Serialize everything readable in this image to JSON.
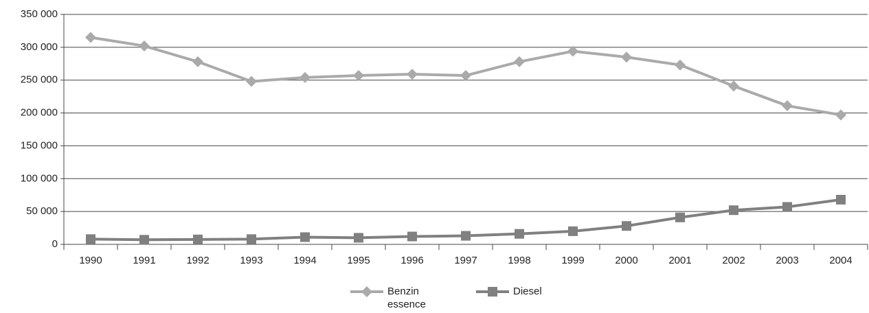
{
  "chart_data": {
    "type": "line",
    "categories": [
      "1990",
      "1991",
      "1992",
      "1993",
      "1994",
      "1995",
      "1996",
      "1997",
      "1998",
      "1999",
      "2000",
      "2001",
      "2002",
      "2003",
      "2004"
    ],
    "series": [
      {
        "name": "Benzin essence",
        "color": "#aaaaaa",
        "marker": "diamond",
        "values": [
          315000,
          302000,
          278000,
          248000,
          254000,
          257000,
          259000,
          257000,
          278000,
          294000,
          285000,
          273000,
          241000,
          211000,
          197000
        ]
      },
      {
        "name": "Diesel",
        "color": "#808080",
        "marker": "square",
        "values": [
          8000,
          7000,
          7500,
          8000,
          11000,
          10000,
          12000,
          13000,
          16000,
          20000,
          28000,
          41000,
          52000,
          57000,
          68000
        ]
      }
    ],
    "ylim": [
      0,
      350000
    ],
    "yticks": [
      0,
      {
        "value": 50000,
        "label": "50 000"
      },
      {
        "value": 100000,
        "label": "100 000"
      },
      {
        "value": 150000,
        "label": "150 000"
      },
      {
        "value": 200000,
        "label": "200 000"
      },
      {
        "value": 250000,
        "label": "250 000"
      },
      {
        "value": 300000,
        "label": "300 000"
      },
      {
        "value": 350000,
        "label": "350 000"
      }
    ],
    "grid": true,
    "legend": "bottom"
  }
}
